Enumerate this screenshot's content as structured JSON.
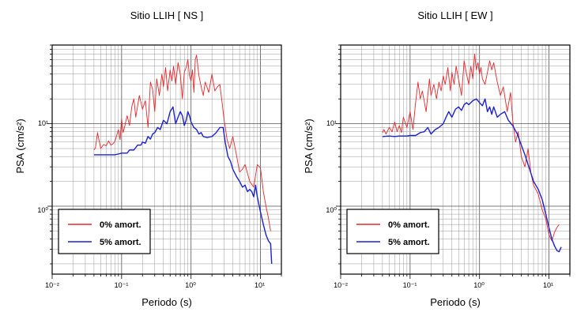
{
  "chart_data": [
    {
      "type": "line",
      "title": "Sitio LLIH [ NS ]",
      "xlabel": "Periodo (s)",
      "ylabel": "PSA (cm/s²)",
      "xscale": "log",
      "yscale": "log",
      "xlim": [
        0.01,
        20
      ],
      "ylim": [
        0.15,
        90
      ],
      "grid": true,
      "legend_position": "bottom-left",
      "x_tick_labels": [
        "10⁻²",
        "10⁻¹",
        "10⁰",
        "10¹"
      ],
      "y_tick_labels": [
        "10⁰",
        "10¹"
      ],
      "series": [
        {
          "name": "0% amort.",
          "color": "#e8262b",
          "x": [
            0.04,
            0.042,
            0.045,
            0.05,
            0.055,
            0.06,
            0.065,
            0.07,
            0.075,
            0.08,
            0.09,
            0.095,
            0.1,
            0.105,
            0.11,
            0.12,
            0.13,
            0.14,
            0.15,
            0.16,
            0.18,
            0.2,
            0.22,
            0.24,
            0.26,
            0.28,
            0.3,
            0.32,
            0.35,
            0.38,
            0.4,
            0.43,
            0.46,
            0.5,
            0.53,
            0.56,
            0.6,
            0.65,
            0.7,
            0.75,
            0.8,
            0.85,
            0.9,
            0.95,
            1.0,
            1.05,
            1.1,
            1.15,
            1.2,
            1.3,
            1.4,
            1.5,
            1.6,
            1.8,
            2.0,
            2.2,
            2.4,
            2.6,
            2.8,
            3.0,
            3.3,
            3.6,
            4.0,
            4.5,
            5.0,
            5.5,
            6.0,
            7.0,
            8.0,
            9.0,
            10.0,
            11.0,
            12.0,
            13.0,
            14.0
          ],
          "values": [
            4.8,
            5.1,
            7.8,
            5.0,
            5.6,
            5.4,
            6.2,
            5.5,
            5.7,
            6.1,
            8.5,
            6.4,
            11.5,
            7.8,
            9.0,
            12.5,
            9.5,
            16.0,
            20.0,
            12.0,
            22.0,
            15.0,
            19.0,
            9.0,
            32.0,
            26.0,
            14.0,
            35.0,
            22.0,
            40.0,
            28.0,
            48.0,
            25.0,
            45.0,
            33.0,
            50.0,
            30.0,
            55.0,
            40.0,
            20.0,
            42.0,
            48.0,
            60.0,
            38.0,
            33.0,
            45.0,
            24.0,
            60.0,
            68.0,
            38.0,
            28.0,
            22.0,
            32.0,
            24.0,
            40.0,
            25.0,
            28.0,
            30.0,
            18.0,
            11.0,
            6.5,
            5.0,
            7.0,
            4.2,
            2.6,
            2.8,
            3.2,
            2.0,
            1.7,
            3.2,
            2.9,
            1.5,
            1.0,
            0.72,
            0.5
          ]
        },
        {
          "name": "5% amort.",
          "color": "#1b22cc",
          "x": [
            0.04,
            0.05,
            0.06,
            0.07,
            0.08,
            0.09,
            0.1,
            0.12,
            0.13,
            0.15,
            0.17,
            0.19,
            0.2,
            0.22,
            0.24,
            0.26,
            0.28,
            0.3,
            0.33,
            0.36,
            0.4,
            0.45,
            0.5,
            0.55,
            0.6,
            0.65,
            0.7,
            0.75,
            0.8,
            0.85,
            0.9,
            0.95,
            1.0,
            1.1,
            1.2,
            1.3,
            1.4,
            1.5,
            1.7,
            2.0,
            2.3,
            2.6,
            2.9,
            3.1,
            3.4,
            3.7,
            4.0,
            4.5,
            5.0,
            5.5,
            6.0,
            6.5,
            7.0,
            7.5,
            8.0,
            8.5,
            9.0,
            10.0,
            11.0,
            12.0,
            13.0,
            14.0,
            14.5
          ],
          "values": [
            4.2,
            4.2,
            4.2,
            4.2,
            4.2,
            4.3,
            4.4,
            4.4,
            4.8,
            4.8,
            5.5,
            5.5,
            6.0,
            5.8,
            7.0,
            6.5,
            7.5,
            7.8,
            9.0,
            8.5,
            11.0,
            10.0,
            14.0,
            16.0,
            10.0,
            12.0,
            14.0,
            12.5,
            9.5,
            11.0,
            14.0,
            12.5,
            10.5,
            9.0,
            8.5,
            7.5,
            7.8,
            7.0,
            6.8,
            7.0,
            7.8,
            9.0,
            9.0,
            6.0,
            4.0,
            3.5,
            2.8,
            2.3,
            2.0,
            1.7,
            1.8,
            1.5,
            1.6,
            1.5,
            1.3,
            1.8,
            1.3,
            0.85,
            0.6,
            0.45,
            0.38,
            0.35,
            0.2
          ]
        }
      ]
    },
    {
      "type": "line",
      "title": "Sitio LLIH [ EW ]",
      "xlabel": "Periodo (s)",
      "ylabel": "PSA (cm/s²)",
      "xscale": "log",
      "yscale": "log",
      "xlim": [
        0.01,
        20
      ],
      "ylim": [
        0.15,
        90
      ],
      "grid": true,
      "legend_position": "bottom-left",
      "x_tick_labels": [
        "10⁻²",
        "10⁻¹",
        "10⁰",
        "10¹"
      ],
      "y_tick_labels": [
        "10⁰",
        "10¹"
      ],
      "series": [
        {
          "name": "0% amort.",
          "color": "#e8262b",
          "x": [
            0.04,
            0.042,
            0.045,
            0.05,
            0.055,
            0.06,
            0.065,
            0.07,
            0.075,
            0.08,
            0.09,
            0.1,
            0.11,
            0.12,
            0.13,
            0.14,
            0.15,
            0.17,
            0.19,
            0.2,
            0.22,
            0.24,
            0.26,
            0.28,
            0.3,
            0.32,
            0.35,
            0.38,
            0.4,
            0.43,
            0.46,
            0.5,
            0.55,
            0.6,
            0.65,
            0.7,
            0.75,
            0.8,
            0.85,
            0.9,
            0.95,
            1.0,
            1.05,
            1.1,
            1.2,
            1.3,
            1.4,
            1.5,
            1.6,
            1.8,
            2.0,
            2.2,
            2.5,
            2.8,
            3.0,
            3.3,
            3.6,
            4.0,
            4.5,
            5.0,
            5.5,
            6.0,
            7.0,
            8.0,
            9.0,
            10.0,
            11.0,
            12.0,
            13.0,
            14.0
          ],
          "values": [
            7.8,
            8.5,
            7.5,
            9.0,
            8.0,
            10.5,
            8.0,
            9.5,
            7.8,
            12.0,
            9.0,
            14.0,
            8.5,
            18.0,
            32.0,
            20.0,
            25.0,
            14.0,
            35.0,
            22.0,
            30.0,
            20.0,
            32.0,
            25.0,
            38.0,
            30.0,
            48.0,
            25.0,
            42.0,
            30.0,
            50.0,
            34.0,
            22.0,
            58.0,
            40.0,
            30.0,
            50.0,
            35.0,
            70.0,
            45.0,
            55.0,
            40.0,
            48.0,
            35.0,
            30.0,
            42.0,
            58.0,
            45.0,
            55.0,
            32.0,
            22.0,
            28.0,
            14.0,
            24.0,
            11.0,
            6.0,
            8.0,
            4.0,
            3.0,
            5.0,
            2.5,
            1.8,
            1.4,
            0.9,
            0.7,
            0.45,
            0.38,
            0.48,
            0.55,
            0.6
          ]
        },
        {
          "name": "5% amort.",
          "color": "#1b22cc",
          "x": [
            0.04,
            0.05,
            0.06,
            0.07,
            0.08,
            0.09,
            0.1,
            0.12,
            0.14,
            0.16,
            0.18,
            0.2,
            0.23,
            0.26,
            0.3,
            0.33,
            0.36,
            0.4,
            0.45,
            0.5,
            0.55,
            0.6,
            0.65,
            0.7,
            0.8,
            0.9,
            1.0,
            1.1,
            1.2,
            1.3,
            1.4,
            1.5,
            1.6,
            1.8,
            2.0,
            2.3,
            2.6,
            3.0,
            3.5,
            4.0,
            4.5,
            5.0,
            5.5,
            6.0,
            7.0,
            8.0,
            9.0,
            10.0,
            11.0,
            12.0,
            13.0,
            14.0,
            15.0
          ],
          "values": [
            7.0,
            7.1,
            7.0,
            7.1,
            7.1,
            7.1,
            7.2,
            7.2,
            7.8,
            8.0,
            9.0,
            7.5,
            8.5,
            9.0,
            10.0,
            12.0,
            14.0,
            12.0,
            15.0,
            16.0,
            14.5,
            17.0,
            18.0,
            17.0,
            19.0,
            20.0,
            18.0,
            16.5,
            20.0,
            14.0,
            16.0,
            13.0,
            16.0,
            12.0,
            13.0,
            14.0,
            11.0,
            9.5,
            7.5,
            5.5,
            4.2,
            3.2,
            2.5,
            2.0,
            1.6,
            1.2,
            0.8,
            0.55,
            0.4,
            0.33,
            0.29,
            0.28,
            0.32
          ]
        }
      ]
    }
  ]
}
